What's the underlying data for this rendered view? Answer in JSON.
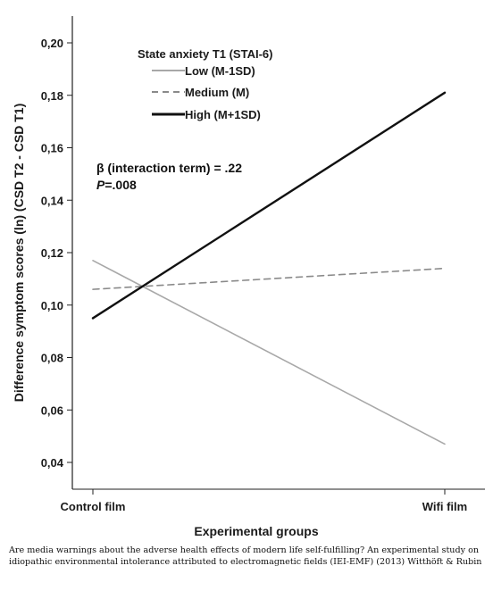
{
  "chart_data": {
    "type": "line",
    "categories": [
      "Control film",
      "Wifi film"
    ],
    "xlabel": "Experimental groups",
    "ylabel": "Difference symptom scores (ln) (CSD T2 - CSD T1)",
    "ylim": [
      0.035,
      0.205
    ],
    "yticks": [
      "0,04",
      "0,06",
      "0,08",
      "0,10",
      "0,12",
      "0,14",
      "0,16",
      "0,18",
      "0,20"
    ],
    "ytick_values": [
      0.04,
      0.06,
      0.08,
      0.1,
      0.12,
      0.14,
      0.16,
      0.18,
      0.2
    ],
    "grid": false,
    "legend_title": "State anxiety T1 (STAI-6)",
    "legend_position": "top-left",
    "series": [
      {
        "name": "Low (M-1SD)",
        "values": [
          0.117,
          0.047
        ],
        "color": "#a8a8a8",
        "style": "solid"
      },
      {
        "name": "Medium (M)",
        "values": [
          0.106,
          0.114
        ],
        "color": "#8a8a8a",
        "style": "dashed"
      },
      {
        "name": "High (M+1SD)",
        "values": [
          0.095,
          0.181
        ],
        "color": "#111111",
        "style": "solid"
      }
    ],
    "annotation": {
      "line1": "β (interaction term) = .22",
      "line2_italic": "P",
      "line2_rest": "=.008"
    }
  },
  "caption": "Are media warnings about the adverse health effects of modern life self-fulfilling? An experimental study on idiopathic environmental intolerance attributed to electromagnetic fields (IEI-EMF) (2013) Witthöft & Rubin"
}
